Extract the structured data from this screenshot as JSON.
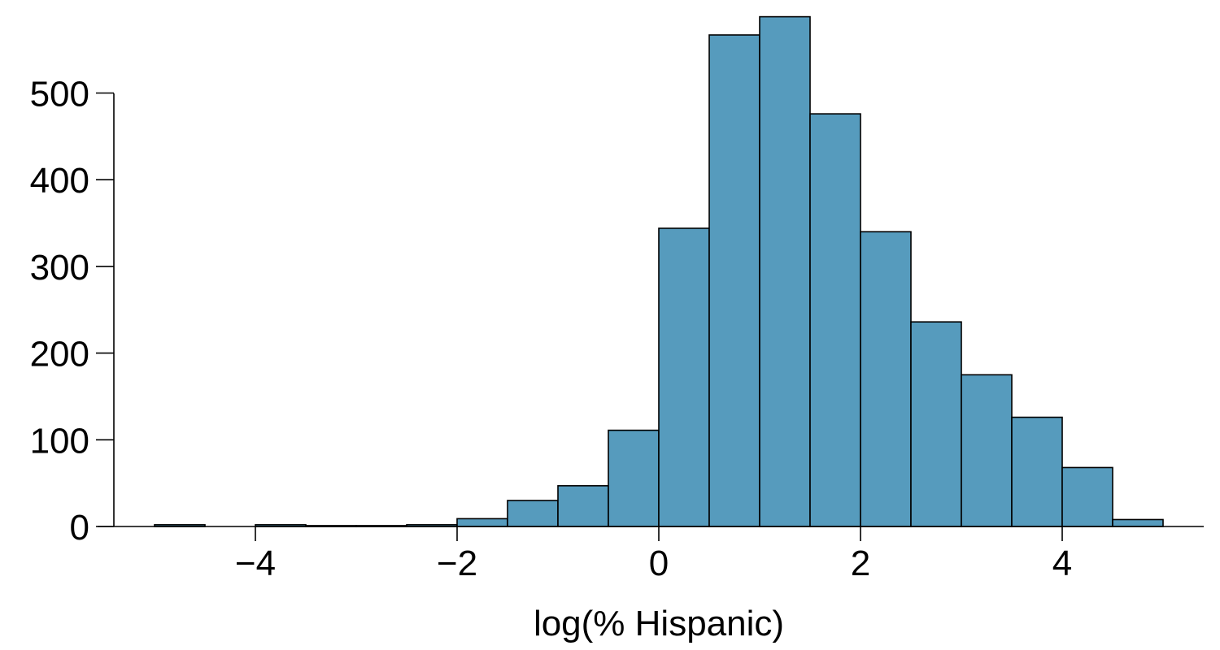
{
  "chart_data": {
    "type": "bar",
    "xlabel": "log(% Hispanic)",
    "ylabel": "",
    "title": "",
    "bin_width": 0.5,
    "bins": [
      {
        "x0": -5.0,
        "x1": -4.5,
        "count": 2
      },
      {
        "x0": -4.5,
        "x1": -4.0,
        "count": 0
      },
      {
        "x0": -4.0,
        "x1": -3.5,
        "count": 2
      },
      {
        "x0": -3.5,
        "x1": -3.0,
        "count": 1
      },
      {
        "x0": -3.0,
        "x1": -2.5,
        "count": 1
      },
      {
        "x0": -2.5,
        "x1": -2.0,
        "count": 2
      },
      {
        "x0": -2.0,
        "x1": -1.5,
        "count": 9
      },
      {
        "x0": -1.5,
        "x1": -1.0,
        "count": 30
      },
      {
        "x0": -1.0,
        "x1": -0.5,
        "count": 47
      },
      {
        "x0": -0.5,
        "x1": 0.0,
        "count": 111
      },
      {
        "x0": 0.0,
        "x1": 0.5,
        "count": 344
      },
      {
        "x0": 0.5,
        "x1": 1.0,
        "count": 567
      },
      {
        "x0": 1.0,
        "x1": 1.5,
        "count": 588
      },
      {
        "x0": 1.5,
        "x1": 2.0,
        "count": 476
      },
      {
        "x0": 2.0,
        "x1": 2.5,
        "count": 340
      },
      {
        "x0": 2.5,
        "x1": 3.0,
        "count": 236
      },
      {
        "x0": 3.0,
        "x1": 3.5,
        "count": 175
      },
      {
        "x0": 3.5,
        "x1": 4.0,
        "count": 126
      },
      {
        "x0": 4.0,
        "x1": 4.5,
        "count": 68
      },
      {
        "x0": 4.5,
        "x1": 5.0,
        "count": 8
      }
    ],
    "xlim": [
      -5.5,
      5.5
    ],
    "ylim": [
      0,
      600
    ],
    "x_ticks": [
      -4,
      -2,
      0,
      2,
      4
    ],
    "x_tick_labels": [
      "−4",
      "−2",
      "0",
      "2",
      "4"
    ],
    "y_ticks": [
      0,
      100,
      200,
      300,
      400,
      500
    ],
    "y_tick_labels": [
      "0",
      "100",
      "200",
      "300",
      "400",
      "500"
    ],
    "grid": false,
    "legend": "none",
    "bar_fill": "#569bbd",
    "bar_stroke": "#000000",
    "axis_color": "#000000"
  }
}
